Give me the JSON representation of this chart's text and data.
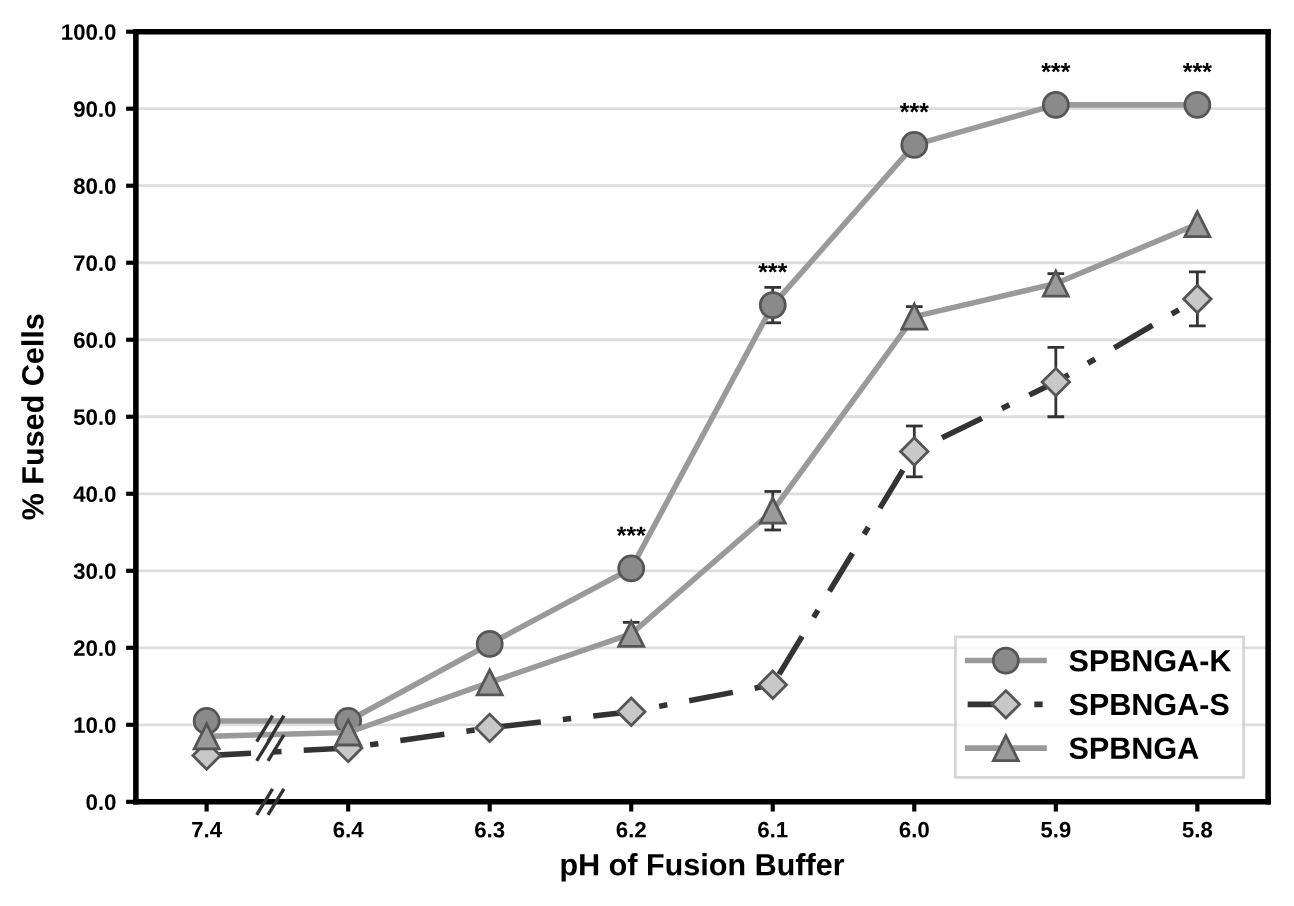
{
  "chart_data": {
    "type": "line",
    "xlabel": "pH of Fusion Buffer",
    "ylabel": "% Fused Cells",
    "categories": [
      "7.4",
      "6.4",
      "6.3",
      "6.2",
      "6.1",
      "6.0",
      "5.9",
      "5.8"
    ],
    "series": [
      {
        "name": "SPBNGA-K",
        "color": "#9a9a9a",
        "marker": "circle",
        "line_style": "solid",
        "values": [
          10.5,
          10.5,
          20.5,
          30.3,
          64.5,
          85.3,
          90.5,
          90.5
        ],
        "errors": [
          null,
          null,
          null,
          1,
          2.3,
          null,
          null,
          null
        ]
      },
      {
        "name": "SPBNGA-S",
        "color": "#333333",
        "marker": "diamond",
        "line_style": "dashdot",
        "values": [
          6,
          7,
          9.6,
          11.7,
          15.2,
          45.5,
          54.5,
          65.3
        ],
        "errors": [
          null,
          null,
          null,
          null,
          null,
          3.3,
          4.5,
          3.5
        ]
      },
      {
        "name": "SPBNGA",
        "color": "#9a9a9a",
        "marker": "triangle",
        "line_style": "solid",
        "values": [
          8.5,
          9,
          15.5,
          21.8,
          37.8,
          63,
          67.3,
          75
        ],
        "errors": [
          null,
          null,
          null,
          1.5,
          2.5,
          1.3,
          1.3,
          null
        ]
      }
    ],
    "ylim": [
      0,
      100
    ],
    "yticks": [
      {
        "value": 0,
        "label": "0.0"
      },
      {
        "value": 10,
        "label": "10.0"
      },
      {
        "value": 20,
        "label": "20.0"
      },
      {
        "value": 30,
        "label": "30.0"
      },
      {
        "value": 40,
        "label": "40.0"
      },
      {
        "value": 50,
        "label": "50.0"
      },
      {
        "value": 60,
        "label": "60.0"
      },
      {
        "value": 70,
        "label": "70.0"
      },
      {
        "value": 80,
        "label": "80.0"
      },
      {
        "value": 90,
        "label": "90.0"
      },
      {
        "value": 100,
        "label": "100.0"
      }
    ],
    "grid": "y",
    "legend": "bottom right",
    "annotations": [
      {
        "text": "***",
        "x": "6.2",
        "y": 30.3
      },
      {
        "text": "***",
        "x": "6.1",
        "y": 64.5
      },
      {
        "text": "***",
        "x": "6.0",
        "y": 85.3
      },
      {
        "text": "***",
        "x": "5.9",
        "y": 90.5
      },
      {
        "text": "***",
        "x": "5.8",
        "y": 90.5
      }
    ]
  }
}
